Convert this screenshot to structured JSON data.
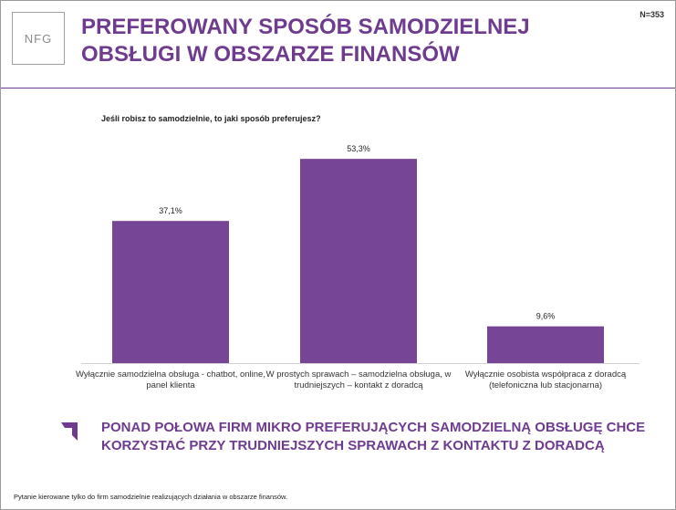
{
  "header": {
    "logo": "NFG",
    "title": "PREFEROWANY SPOSÓB SAMODZIELNEJ OBSŁUGI W OBSZARZE FINANSÓW",
    "sample": "N=353"
  },
  "chart_data": {
    "type": "bar",
    "title": "Jeśli robisz to samodzielnie, to jaki sposób preferujesz?",
    "categories": [
      "Wyłącznie samodzielna obsługa - chatbot, online, panel klienta",
      "W prostych sprawach – samodzielna obsługa, w trudniejszych – kontakt z doradcą",
      "Wyłącznie osobista współpraca z doradcą (telefoniczna lub stacjonarna)"
    ],
    "values": [
      37.1,
      53.3,
      9.6
    ],
    "value_labels": [
      "37,1%",
      "53,3%",
      "9,6%"
    ],
    "color": "#774595"
  },
  "conclusion": "PONAD POŁOWA FIRM MIKRO PREFERUJĄCYCH SAMODZIELNĄ OBSŁUGĘ CHCE KORZYSTAĆ PRZY TRUDNIEJSZYCH SPRAWACH Z KONTAKTU Z DORADCĄ",
  "footnote": "Pytanie kierowane tylko do firm samodzielnie realizujących działania w obszarze finansów."
}
